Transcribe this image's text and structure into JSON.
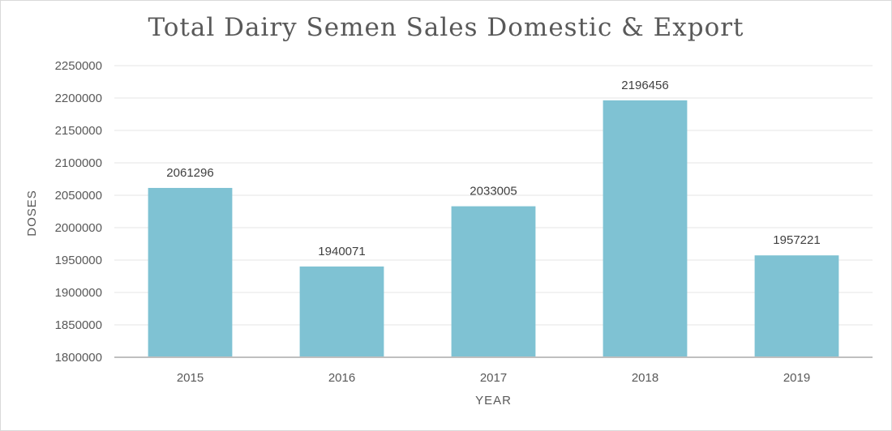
{
  "chart_data": {
    "type": "bar",
    "title": "Total Dairy Semen Sales Domestic & Export",
    "xlabel": "YEAR",
    "ylabel": "DOSES",
    "categories": [
      "2015",
      "2016",
      "2017",
      "2018",
      "2019"
    ],
    "values": [
      2061296,
      1940071,
      2033005,
      2196456,
      1957221
    ],
    "data_labels": [
      "2061296",
      "1940071",
      "2033005",
      "2196456",
      "1957221"
    ],
    "ylim": [
      1800000,
      2250000
    ],
    "yticks": [
      1800000,
      1850000,
      1900000,
      1950000,
      2000000,
      2050000,
      2100000,
      2150000,
      2200000,
      2250000
    ],
    "grid": true,
    "legend": "none",
    "bar_color": "#7fc2d3"
  }
}
